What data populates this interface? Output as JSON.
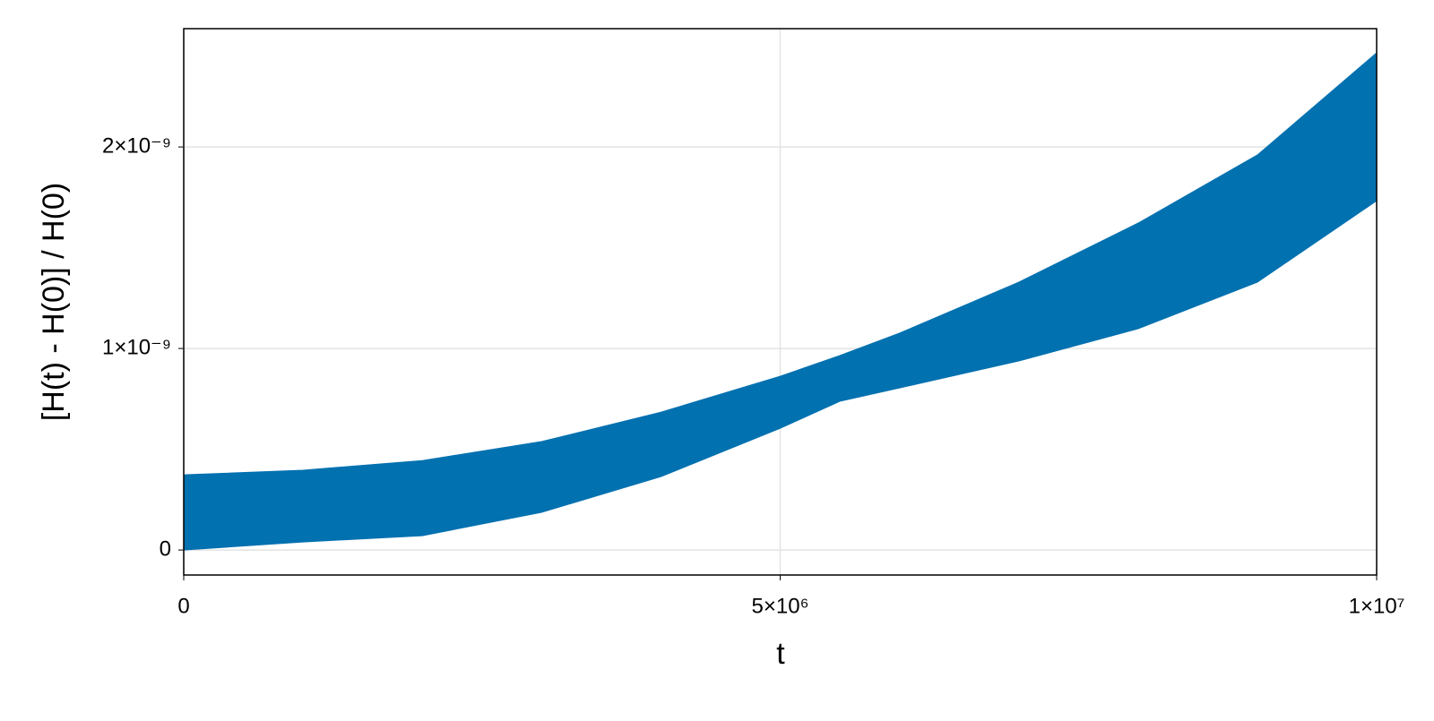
{
  "chart_data": {
    "type": "band",
    "x_label": "t",
    "y_label": "[H(t) - H(0)] / H(0)",
    "x": [
      0,
      1000000,
      2000000,
      3000000,
      4000000,
      5000000,
      5500000,
      6000000,
      7000000,
      8000000,
      9000000,
      10000000
    ],
    "upper": [
      3.73e-10,
      3.96e-10,
      4.44e-10,
      5.38e-10,
      6.84e-10,
      8.62e-10,
      9.65e-10,
      1.076e-09,
      1.329e-09,
      1.622e-09,
      1.96e-09,
      2.467e-09
    ],
    "lower": [
      0,
      4e-11,
      7.1e-11,
      1.87e-10,
      3.64e-10,
      6.04e-10,
      7.38e-10,
      8.04e-10,
      9.38e-10,
      1.098e-09,
      1.329e-09,
      1.733e-09
    ],
    "color": "#0271b0",
    "xlim": [
      0,
      10000000
    ],
    "ylim": [
      -1.24e-10,
      2.587e-09
    ],
    "xticks": [
      0,
      {
        "value": 5000000,
        "label": "5×10⁶"
      },
      {
        "value": 10000000,
        "label": "1×10⁷"
      }
    ],
    "yticks": [
      0,
      {
        "value": 1e-09,
        "label": "1×10⁻⁹"
      },
      {
        "value": 2e-09,
        "label": "2×10⁻⁹"
      }
    ],
    "grid": true
  }
}
